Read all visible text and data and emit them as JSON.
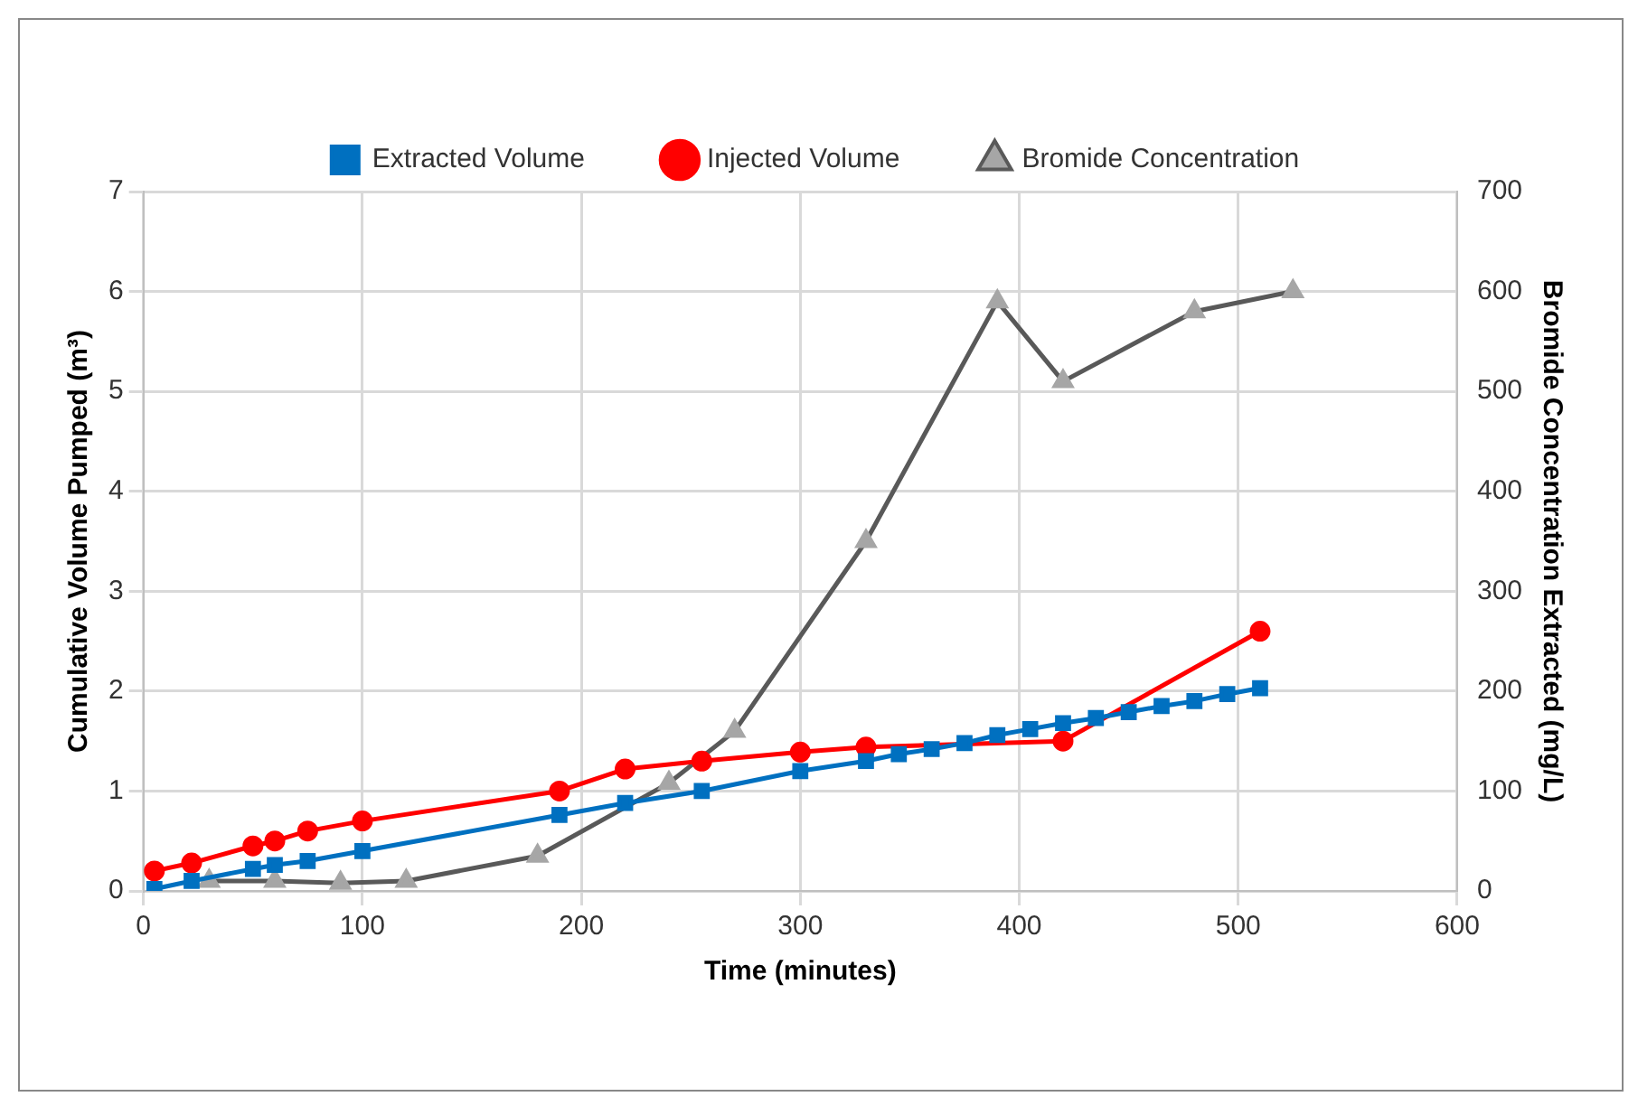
{
  "chart_data": {
    "type": "line",
    "xlabel": "Time (minutes)",
    "ylabel": "Cumulative Volume Pumped (m³)",
    "y2label": "Bromide Concentration Extracted (mg/L)",
    "xlim": [
      0,
      600
    ],
    "xticks": [
      0,
      100,
      200,
      300,
      400,
      500,
      600
    ],
    "ylim": [
      0,
      7
    ],
    "yticks": [
      0,
      1,
      2,
      3,
      4,
      5,
      6,
      7
    ],
    "y2lim": [
      0,
      700
    ],
    "y2ticks": [
      0,
      100,
      200,
      300,
      400,
      500,
      600,
      700
    ],
    "grid": true,
    "legend": "top",
    "line_style": "solid",
    "series": [
      {
        "name": "Extracted Volume",
        "color": "#0070c0",
        "marker": "square",
        "x": [
          5,
          22,
          50,
          60,
          75,
          100,
          190,
          220,
          255,
          300,
          330,
          345,
          360,
          375,
          390,
          405,
          420,
          435,
          450,
          465,
          480,
          495,
          510
        ],
        "values": [
          0.02,
          0.1,
          0.22,
          0.26,
          0.3,
          0.4,
          0.76,
          0.88,
          1.0,
          1.2,
          1.3,
          1.37,
          1.42,
          1.48,
          1.56,
          1.62,
          1.68,
          1.73,
          1.79,
          1.85,
          1.9,
          1.97,
          2.03
        ]
      },
      {
        "name": "Injected Volume",
        "color": "#ff0000",
        "marker": "circle",
        "x": [
          5,
          22,
          50,
          60,
          75,
          100,
          190,
          220,
          255,
          300,
          330,
          420,
          510
        ],
        "values": [
          0.2,
          0.28,
          0.45,
          0.5,
          0.6,
          0.7,
          1.0,
          1.22,
          1.3,
          1.39,
          1.44,
          1.5,
          2.6
        ]
      },
      {
        "name": "Bromide Concentration",
        "color": "#595959",
        "marker": "triangle",
        "axis": "y2",
        "x": [
          30,
          60,
          90,
          120,
          180,
          240,
          270,
          330,
          390,
          420,
          480,
          525
        ],
        "values": [
          10,
          10,
          8,
          10,
          35,
          108,
          160,
          350,
          590,
          510,
          580,
          600
        ]
      }
    ]
  }
}
